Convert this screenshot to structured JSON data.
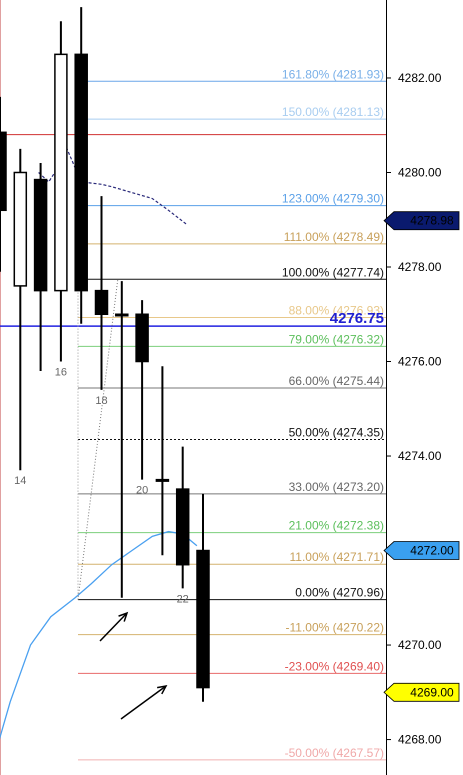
{
  "chart_data": {
    "type": "candlestick",
    "ylim": [
      4267.25,
      4283.65
    ],
    "y_ticks": [
      "4282.00",
      "4280.00",
      "4278.00",
      "4276.00",
      "4274.00",
      "4272.00",
      "4270.00",
      "4268.00"
    ],
    "grid": false,
    "candles": [
      {
        "x": 0,
        "open": 4280.85,
        "high": 4281.6,
        "low": 4277.9,
        "close": 4279.2
      },
      {
        "x": 1,
        "open": 4277.6,
        "high": 4280.5,
        "low": 4273.7,
        "close": 4280.0
      },
      {
        "x": 2,
        "open": 4279.85,
        "high": 4280.2,
        "low": 4275.8,
        "close": 4277.5
      },
      {
        "x": 3,
        "open": 4277.5,
        "high": 4283.2,
        "low": 4276.0,
        "close": 4282.5
      },
      {
        "x": 4,
        "open": 4282.5,
        "high": 4283.5,
        "low": 4276.8,
        "close": 4277.5
      },
      {
        "x": 5,
        "open": 4277.5,
        "high": 4279.5,
        "low": 4275.4,
        "close": 4277.0
      },
      {
        "x": 6,
        "open": 4277.0,
        "high": 4277.7,
        "low": 4271.0,
        "close": 4277.0
      },
      {
        "x": 7,
        "open": 4277.0,
        "high": 4277.3,
        "low": 4273.5,
        "close": 4276.0
      },
      {
        "x": 8,
        "open": 4273.5,
        "high": 4275.9,
        "low": 4271.9,
        "close": 4273.5
      },
      {
        "x": 9,
        "open": 4273.3,
        "high": 4274.2,
        "low": 4271.2,
        "close": 4271.7
      },
      {
        "x": 10,
        "open": 4272.0,
        "high": 4273.2,
        "low": 4268.8,
        "close": 4269.1
      }
    ],
    "bar_labels": [
      {
        "x": 1,
        "text": "14"
      },
      {
        "x": 3,
        "text": "16"
      },
      {
        "x": 5,
        "text": "18"
      },
      {
        "x": 7,
        "text": "20"
      },
      {
        "x": 9,
        "text": "22"
      }
    ],
    "fib_levels": [
      {
        "label": "161.80% (4281.93)",
        "value": 4281.93,
        "color": "#6aa6e8",
        "text_color": "#7ab0e8"
      },
      {
        "label": "150.00% (4281.13)",
        "value": 4281.13,
        "color": "#a8cdf0",
        "text_color": "#a8cdf0"
      },
      {
        "label": "123.00% (4279.30)",
        "value": 4279.3,
        "color": "#5aa0e8",
        "text_color": "#5aa0e8"
      },
      {
        "label": "111.00% (4278.49)",
        "value": 4278.49,
        "color": "#d4b26e",
        "text_color": "#c8a05a"
      },
      {
        "label": "100.00% (4277.74)",
        "value": 4277.74,
        "color": "#111111",
        "text_color": "#111111"
      },
      {
        "label": "88.00% (4276.93)",
        "value": 4276.93,
        "color": "#e8c88a",
        "text_color": "#e8c88a"
      },
      {
        "label": "79.00% (4276.32)",
        "value": 4276.32,
        "color": "#7ccf7c",
        "text_color": "#5cbf5c"
      },
      {
        "label": "66.00% (4275.44)",
        "value": 4275.44,
        "color": "#777777",
        "text_color": "#666666"
      },
      {
        "label": "50.00% (4274.35)",
        "value": 4274.35,
        "color": "#111111",
        "text_color": "#111111",
        "dashed": true
      },
      {
        "label": "33.00% (4273.20)",
        "value": 4273.2,
        "color": "#777777",
        "text_color": "#666666"
      },
      {
        "label": "21.00% (4272.38)",
        "value": 4272.38,
        "color": "#7ccf7c",
        "text_color": "#5cbf5c"
      },
      {
        "label": "11.00% (4271.71)",
        "value": 4271.71,
        "color": "#d4b26e",
        "text_color": "#c8a05a"
      },
      {
        "label": "0.00% (4270.96)",
        "value": 4270.96,
        "color": "#111111",
        "text_color": "#111111"
      },
      {
        "label": "-11.00% (4270.22)",
        "value": 4270.22,
        "color": "#d4b26e",
        "text_color": "#c8a05a"
      },
      {
        "label": "-23.00% (4269.40)",
        "value": 4269.4,
        "color": "#e86a6a",
        "text_color": "#e05050"
      },
      {
        "label": "-50.00% (4267.57)",
        "value": 4267.57,
        "color": "#f0b0b0",
        "text_color": "#f0a8a8"
      }
    ],
    "horizontal_lines": [
      {
        "value": 4280.8,
        "color": "#d03030"
      },
      {
        "value": 4276.75,
        "color": "#2020e0"
      }
    ],
    "highlight_label": {
      "text": "4276.75",
      "value": 4276.75,
      "color": "#2020d0"
    },
    "price_markers": [
      {
        "text": "4278.98",
        "value": 4278.98,
        "bg": "#0a1a6e",
        "fg": "#ffffff"
      },
      {
        "text": "4272.00",
        "value": 4272.0,
        "bg": "#3aa0f0",
        "fg": "#ffffff"
      },
      {
        "text": "4269.00",
        "value": 4269.0,
        "bg": "#ffff00",
        "fg": "#000000"
      }
    ],
    "moving_average_dark": [
      {
        "x": 1.9,
        "y": 4280.0
      },
      {
        "x": 2.4,
        "y": 4279.8
      },
      {
        "x": 3.0,
        "y": 4280.2
      },
      {
        "x": 3.3,
        "y": 4280.5
      },
      {
        "x": 4.0,
        "y": 4279.8
      },
      {
        "x": 5.0,
        "y": 4279.75
      },
      {
        "x": 5.5,
        "y": 4279.7
      },
      {
        "x": 6.3,
        "y": 4279.6
      },
      {
        "x": 7.5,
        "y": 4279.45
      },
      {
        "x": 8.3,
        "y": 4279.2
      },
      {
        "x": 9.2,
        "y": 4278.9
      }
    ],
    "moving_average_light": [
      {
        "x": -0.5,
        "y": 4267.3
      },
      {
        "x": 0.5,
        "y": 4268.8
      },
      {
        "x": 1.5,
        "y": 4270.0
      },
      {
        "x": 2.5,
        "y": 4270.6
      },
      {
        "x": 3.7,
        "y": 4271.0
      },
      {
        "x": 4.5,
        "y": 4271.3
      },
      {
        "x": 5.5,
        "y": 4271.7
      },
      {
        "x": 6.5,
        "y": 4272.0
      },
      {
        "x": 7.5,
        "y": 4272.3
      },
      {
        "x": 8.3,
        "y": 4272.4
      },
      {
        "x": 9.0,
        "y": 4272.35
      },
      {
        "x": 9.7,
        "y": 4272.1
      }
    ]
  }
}
